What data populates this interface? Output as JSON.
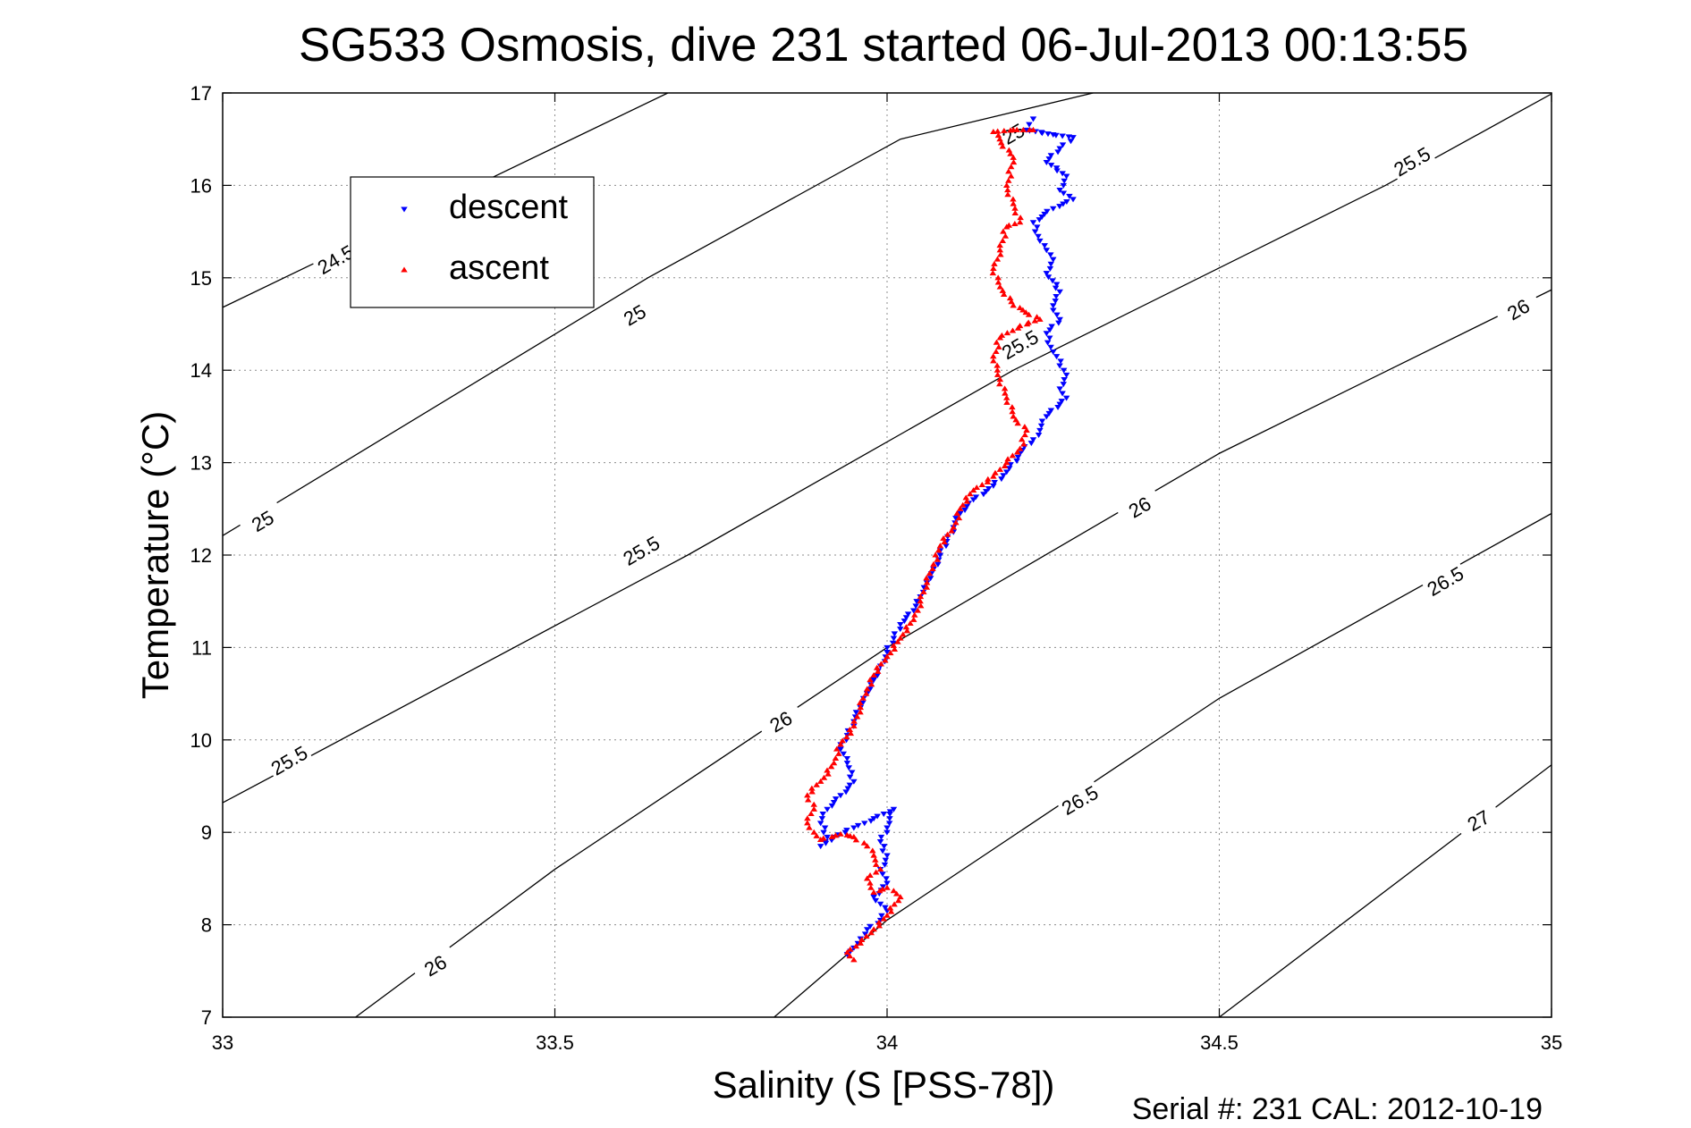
{
  "chart_data": {
    "type": "scatter",
    "title": "SG533 Osmosis, dive 231 started 06-Jul-2013 00:13:55",
    "xlabel": "Salinity (S [PSS-78])",
    "ylabel": "Temperature (°C)",
    "footer": "Serial #: 231  CAL: 2012-10-19",
    "xlim": [
      33,
      35
    ],
    "ylim": [
      7,
      17
    ],
    "x_ticks": [
      33,
      33.5,
      34,
      34.5,
      35
    ],
    "x_tick_labels": [
      "33",
      "33.5",
      "34",
      "34.5",
      "35"
    ],
    "y_ticks": [
      7,
      8,
      9,
      10,
      11,
      12,
      13,
      14,
      15,
      16,
      17
    ],
    "y_tick_labels": [
      "7",
      "8",
      "9",
      "10",
      "11",
      "12",
      "13",
      "14",
      "15",
      "16",
      "17"
    ],
    "grid": true,
    "legend_position": "top-left",
    "density_contours": [
      {
        "label": "24.5",
        "points": [
          [
            33,
            14.68
          ],
          [
            33.67,
            17.0
          ]
        ],
        "label_at": [
          33.17,
          15.2
        ]
      },
      {
        "label": "25",
        "points": [
          [
            33,
            12.21
          ],
          [
            33.64,
            15.0
          ],
          [
            34.02,
            16.5
          ],
          [
            34.31,
            17.0
          ]
        ],
        "label_at": [
          33.62,
          14.6
        ]
      },
      {
        "label": "25",
        "points": [],
        "label_at": [
          33.06,
          12.37
        ]
      },
      {
        "label": "25",
        "points": [],
        "label_at": [
          34.19,
          16.56
        ]
      },
      {
        "label": "25.5",
        "points": [
          [
            33,
            9.32
          ],
          [
            33.7,
            12.0
          ],
          [
            34.19,
            14.0
          ],
          [
            34.75,
            16.0
          ],
          [
            35,
            16.99
          ]
        ],
        "label_at": [
          33.1,
          9.78
        ]
      },
      {
        "label": "25.5",
        "points": [],
        "label_at": [
          33.63,
          12.05
        ]
      },
      {
        "label": "25.5",
        "points": [],
        "label_at": [
          34.2,
          14.28
        ]
      },
      {
        "label": "25.5",
        "points": [],
        "label_at": [
          34.79,
          16.26
        ]
      },
      {
        "label": "26",
        "points": [
          [
            33.2,
            7.0
          ],
          [
            33.5,
            8.6
          ],
          [
            34.0,
            11.0
          ],
          [
            34.5,
            13.1
          ],
          [
            35,
            14.87
          ]
        ],
        "label_at": [
          33.32,
          7.56
        ]
      },
      {
        "label": "26",
        "points": [],
        "label_at": [
          33.84,
          10.2
        ]
      },
      {
        "label": "26",
        "points": [],
        "label_at": [
          34.38,
          12.52
        ]
      },
      {
        "label": "26",
        "points": [],
        "label_at": [
          34.95,
          14.66
        ]
      },
      {
        "label": "26.5",
        "points": [
          [
            33.83,
            7.0
          ],
          [
            34.0,
            8.05
          ],
          [
            34.5,
            10.45
          ],
          [
            35,
            12.45
          ]
        ],
        "label_at": [
          34.29,
          9.35
        ]
      },
      {
        "label": "26.5",
        "points": [],
        "label_at": [
          34.84,
          11.72
        ]
      },
      {
        "label": "27",
        "points": [
          [
            34.5,
            7.0
          ],
          [
            35,
            9.73
          ]
        ],
        "label_at": [
          34.89,
          9.13
        ]
      }
    ],
    "series": [
      {
        "name": "descent",
        "color": "#0000ff",
        "points": [
          [
            34.22,
            16.72
          ],
          [
            34.21,
            16.6
          ],
          [
            34.25,
            16.55
          ],
          [
            34.28,
            16.52
          ],
          [
            34.26,
            16.4
          ],
          [
            34.24,
            16.25
          ],
          [
            34.27,
            16.1
          ],
          [
            34.26,
            15.95
          ],
          [
            34.28,
            15.85
          ],
          [
            34.25,
            15.75
          ],
          [
            34.22,
            15.6
          ],
          [
            34.23,
            15.4
          ],
          [
            34.24,
            15.3
          ],
          [
            34.25,
            15.2
          ],
          [
            34.24,
            15.05
          ],
          [
            34.26,
            14.85
          ],
          [
            34.25,
            14.7
          ],
          [
            34.26,
            14.55
          ],
          [
            34.24,
            14.4
          ],
          [
            34.25,
            14.2
          ],
          [
            34.27,
            13.95
          ],
          [
            34.26,
            13.8
          ],
          [
            34.27,
            13.7
          ],
          [
            34.24,
            13.5
          ],
          [
            34.23,
            13.35
          ],
          [
            34.22,
            13.25
          ],
          [
            34.2,
            13.1
          ],
          [
            34.18,
            12.9
          ],
          [
            34.16,
            12.75
          ],
          [
            34.13,
            12.6
          ],
          [
            34.11,
            12.45
          ],
          [
            34.1,
            12.3
          ],
          [
            34.09,
            12.15
          ],
          [
            34.08,
            12.0
          ],
          [
            34.07,
            11.85
          ],
          [
            34.06,
            11.7
          ],
          [
            34.05,
            11.55
          ],
          [
            34.04,
            11.4
          ],
          [
            34.02,
            11.25
          ],
          [
            34.01,
            11.1
          ],
          [
            34.0,
            10.95
          ],
          [
            33.99,
            10.8
          ],
          [
            33.98,
            10.65
          ],
          [
            33.97,
            10.5
          ],
          [
            33.96,
            10.35
          ],
          [
            33.95,
            10.2
          ],
          [
            33.94,
            10.05
          ],
          [
            33.93,
            9.9
          ],
          [
            33.94,
            9.75
          ],
          [
            33.95,
            9.55
          ],
          [
            33.93,
            9.4
          ],
          [
            33.91,
            9.25
          ],
          [
            33.9,
            9.1
          ],
          [
            33.91,
            8.95
          ],
          [
            33.9,
            8.85
          ],
          [
            33.92,
            8.95
          ],
          [
            33.95,
            9.05
          ],
          [
            33.98,
            9.15
          ],
          [
            34.01,
            9.25
          ],
          [
            34.0,
            9.05
          ],
          [
            33.99,
            8.9
          ],
          [
            34.0,
            8.75
          ],
          [
            33.99,
            8.6
          ],
          [
            34.0,
            8.45
          ],
          [
            33.98,
            8.3
          ],
          [
            34.0,
            8.15
          ],
          [
            33.99,
            8.05
          ],
          [
            33.97,
            7.95
          ],
          [
            33.96,
            7.85
          ],
          [
            33.95,
            7.75
          ],
          [
            33.94,
            7.68
          ]
        ]
      },
      {
        "name": "ascent",
        "color": "#ff0000",
        "points": [
          [
            33.95,
            7.62
          ],
          [
            33.94,
            7.7
          ],
          [
            33.96,
            7.8
          ],
          [
            33.98,
            7.95
          ],
          [
            34.0,
            8.1
          ],
          [
            34.02,
            8.3
          ],
          [
            34.0,
            8.4
          ],
          [
            33.98,
            8.35
          ],
          [
            33.97,
            8.5
          ],
          [
            33.99,
            8.6
          ],
          [
            33.98,
            8.75
          ],
          [
            33.97,
            8.85
          ],
          [
            33.95,
            8.95
          ],
          [
            33.93,
            8.98
          ],
          [
            33.9,
            8.92
          ],
          [
            33.89,
            9.0
          ],
          [
            33.88,
            9.1
          ],
          [
            33.89,
            9.25
          ],
          [
            33.88,
            9.4
          ],
          [
            33.9,
            9.55
          ],
          [
            33.92,
            9.75
          ],
          [
            33.93,
            9.95
          ],
          [
            33.95,
            10.15
          ],
          [
            33.96,
            10.35
          ],
          [
            33.97,
            10.55
          ],
          [
            33.98,
            10.7
          ],
          [
            34.0,
            10.9
          ],
          [
            34.02,
            11.1
          ],
          [
            34.04,
            11.3
          ],
          [
            34.05,
            11.5
          ],
          [
            34.06,
            11.7
          ],
          [
            34.07,
            11.9
          ],
          [
            34.08,
            12.1
          ],
          [
            34.1,
            12.3
          ],
          [
            34.11,
            12.5
          ],
          [
            34.13,
            12.7
          ],
          [
            34.16,
            12.85
          ],
          [
            34.18,
            13.0
          ],
          [
            34.2,
            13.15
          ],
          [
            34.21,
            13.35
          ],
          [
            34.19,
            13.5
          ],
          [
            34.18,
            13.7
          ],
          [
            34.17,
            13.9
          ],
          [
            34.16,
            14.1
          ],
          [
            34.17,
            14.35
          ],
          [
            34.2,
            14.48
          ],
          [
            34.23,
            14.55
          ],
          [
            34.19,
            14.7
          ],
          [
            34.17,
            14.9
          ],
          [
            34.16,
            15.1
          ],
          [
            34.17,
            15.3
          ],
          [
            34.18,
            15.55
          ],
          [
            34.2,
            15.6
          ],
          [
            34.19,
            15.8
          ],
          [
            34.18,
            16.0
          ],
          [
            34.19,
            16.3
          ],
          [
            34.16,
            16.58
          ],
          [
            34.19,
            16.6
          ],
          [
            34.22,
            16.6
          ]
        ]
      }
    ]
  }
}
